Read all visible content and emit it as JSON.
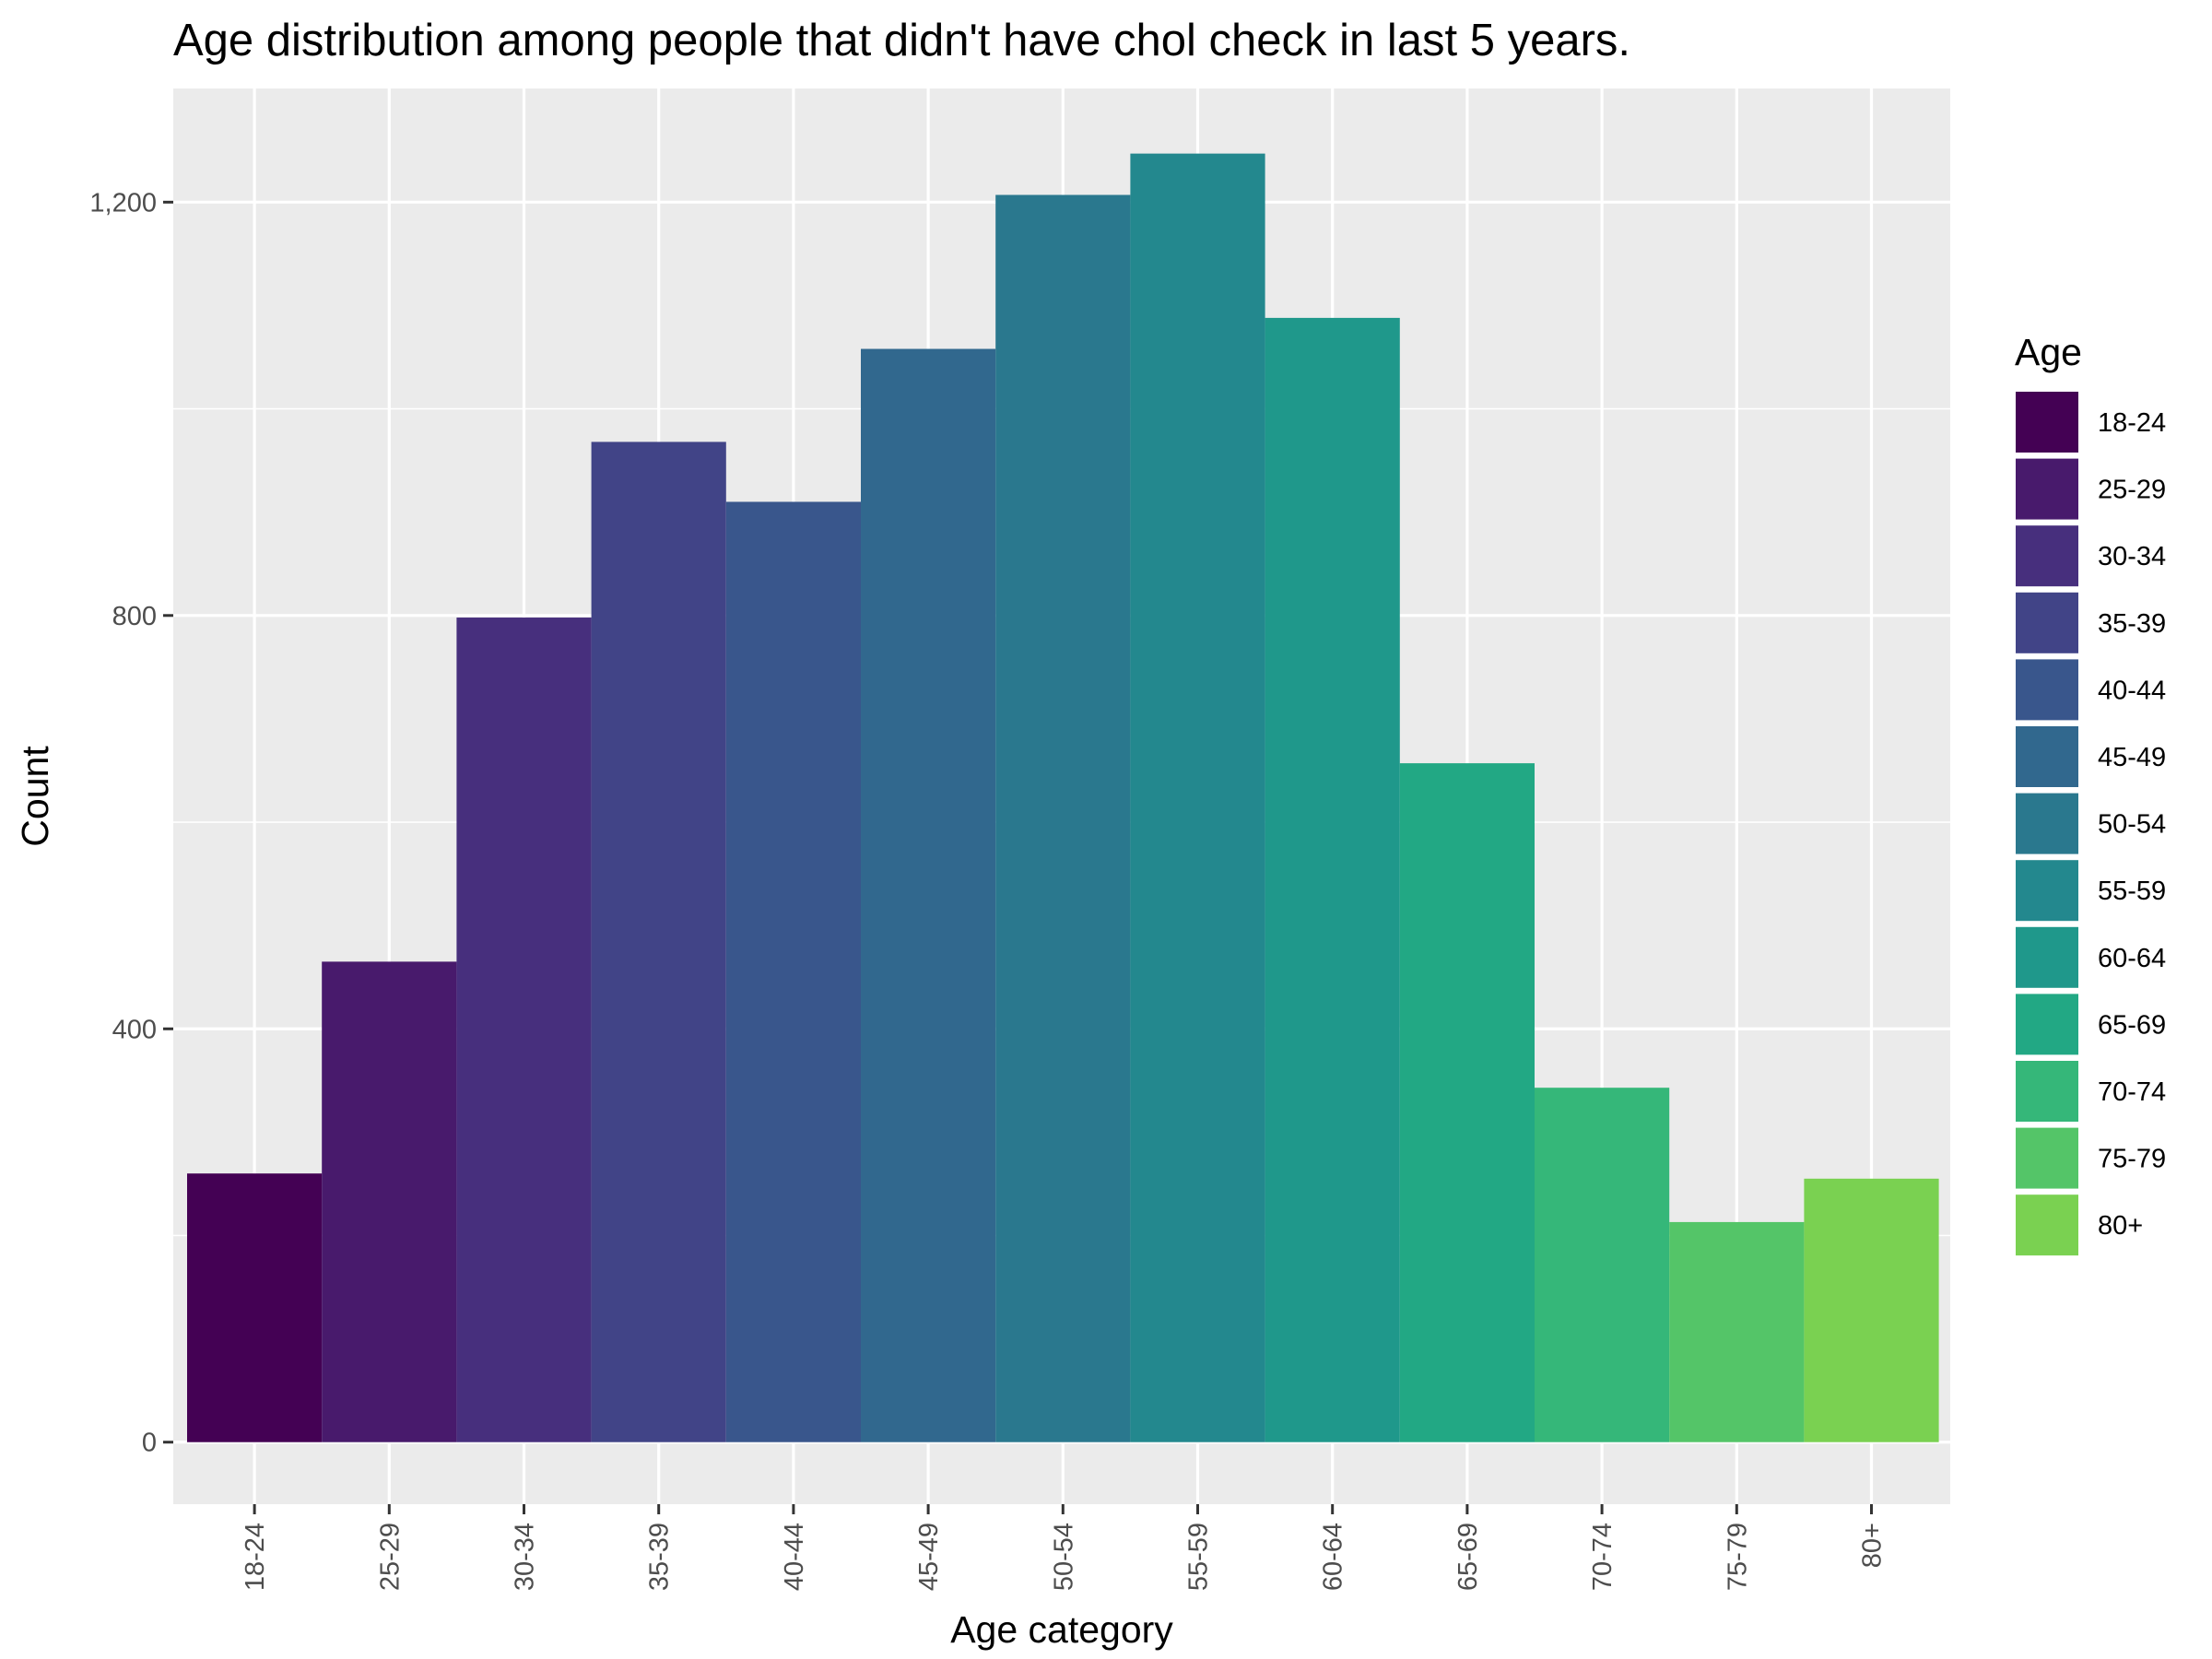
{
  "chart_data": {
    "type": "bar",
    "title": "Age distribution among people that didn't have chol check in last 5 years.",
    "xlabel": "Age category",
    "ylabel": "Count",
    "categories": [
      "18-24",
      "25-29",
      "30-34",
      "35-39",
      "40-44",
      "45-49",
      "50-54",
      "55-59",
      "60-64",
      "65-69",
      "70-74",
      "75-79",
      "80+"
    ],
    "values": [
      260,
      465,
      798,
      968,
      910,
      1058,
      1207,
      1247,
      1088,
      657,
      343,
      213,
      255
    ],
    "ylim": [
      -60,
      1310
    ],
    "yticks": [
      0,
      400,
      800,
      1200
    ],
    "ytick_labels": [
      "0",
      "400",
      "800",
      "1,200"
    ],
    "grid": true,
    "legend": {
      "title": "Age",
      "placement": "right",
      "entries": [
        "18-24",
        "25-29",
        "30-34",
        "35-39",
        "40-44",
        "45-49",
        "50-54",
        "55-59",
        "60-64",
        "65-69",
        "70-74",
        "75-79",
        "80+"
      ]
    },
    "colors": [
      "#440154",
      "#481a6c",
      "#472f7d",
      "#414487",
      "#39568c",
      "#31688e",
      "#2a788e",
      "#23888e",
      "#1f988b",
      "#22a884",
      "#35b779",
      "#54c568",
      "#7ad151"
    ]
  }
}
